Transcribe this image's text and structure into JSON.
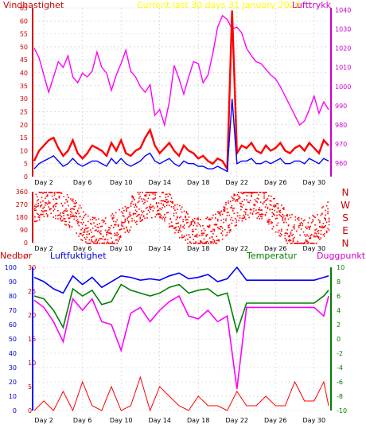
{
  "chart_data": [
    {
      "type": "line",
      "title": "Current last 30 days 31 January 2020",
      "left_label": "Vindhastighet",
      "right_label": "Lufttrykk",
      "y_left_ticks": [
        "0",
        "5",
        "10",
        "15",
        "20",
        "25",
        "30",
        "35",
        "40",
        "45",
        "50",
        "55",
        "60",
        "65"
      ],
      "y_right_ticks": [
        "960",
        "970",
        "980",
        "990",
        "1000",
        "1010",
        "1020",
        "1030",
        "1040"
      ],
      "x_ticks": [
        "Day 2",
        "Day 6",
        "Day 10",
        "Day 14",
        "Day 18",
        "Day 22",
        "Day 26",
        "Day 30"
      ],
      "ylim_left": [
        0,
        65
      ],
      "ylim_right": [
        953,
        1041
      ],
      "series": [
        {
          "color": "#ff00ff",
          "x": [
            1,
            1.5,
            2,
            2.5,
            3,
            3.5,
            4,
            4.5,
            5,
            5.5,
            6,
            6.5,
            7,
            7.5,
            8,
            8.5,
            9,
            9.5,
            10,
            10.5,
            11,
            11.5,
            12,
            12.5,
            13,
            13.5,
            14,
            14.5,
            15,
            15.5,
            16,
            16.5,
            17,
            17.5,
            18,
            18.5,
            19,
            19.5,
            20,
            20.5,
            21,
            21.5,
            22,
            22.5,
            23,
            23.5,
            24,
            24.5,
            25,
            25.5,
            26,
            26.5,
            27,
            27.5,
            28,
            28.5,
            29,
            29.5,
            30,
            30.5,
            31,
            31.5
          ],
          "y": [
            1020,
            1015,
            1006,
            997,
            1005,
            1013,
            1010,
            1016,
            1005,
            1002,
            1007,
            1005,
            1008,
            1018,
            1010,
            1007,
            998,
            1006,
            1012,
            1019,
            1008,
            1005,
            1000,
            997,
            1001,
            985,
            988,
            980,
            992,
            1011,
            1004,
            996,
            1005,
            1013,
            1012,
            1002,
            1006,
            1017,
            1031,
            1037,
            1035,
            1030,
            1031,
            1028,
            1020,
            1016,
            1013,
            1012,
            1009,
            1006,
            1004,
            1000,
            995,
            990,
            985,
            980,
            982,
            988,
            995,
            986,
            992,
            988
          ]
        },
        {
          "color": "#ff0000",
          "x": [
            1,
            1.5,
            2,
            2.5,
            3,
            3.5,
            4,
            4.5,
            5,
            5.5,
            6,
            6.5,
            7,
            7.5,
            8,
            8.5,
            9,
            9.5,
            10,
            10.5,
            11,
            11.5,
            12,
            12.5,
            13,
            13.5,
            14,
            14.5,
            15,
            15.5,
            16,
            16.5,
            17,
            17.5,
            18,
            18.5,
            19,
            19.5,
            20,
            20.5,
            21,
            21.5,
            22,
            22.5,
            23,
            23.5,
            24,
            24.5,
            25,
            25.5,
            26,
            26.5,
            27,
            27.5,
            28,
            28.5,
            29,
            29.5,
            30,
            30.5,
            31,
            31.5
          ],
          "y": [
            6,
            10,
            12,
            14,
            15,
            11,
            8,
            10,
            14,
            9,
            7,
            9,
            12,
            11,
            10,
            8,
            13,
            10,
            14,
            9,
            8,
            10,
            11,
            15,
            18,
            12,
            9,
            11,
            13,
            10,
            8,
            12,
            10,
            9,
            7,
            8,
            6,
            5,
            7,
            6,
            3,
            64,
            9,
            12,
            11,
            13,
            10,
            9,
            12,
            10,
            11,
            13,
            10,
            9,
            11,
            12,
            10,
            13,
            11,
            9,
            14,
            12
          ]
        },
        {
          "color": "#0000ff",
          "x": [
            1,
            1.5,
            2,
            2.5,
            3,
            3.5,
            4,
            4.5,
            5,
            5.5,
            6,
            6.5,
            7,
            7.5,
            8,
            8.5,
            9,
            9.5,
            10,
            10.5,
            11,
            11.5,
            12,
            12.5,
            13,
            13.5,
            14,
            14.5,
            15,
            15.5,
            16,
            16.5,
            17,
            17.5,
            18,
            18.5,
            19,
            19.5,
            20,
            20.5,
            21,
            21.5,
            22,
            22.5,
            23,
            23.5,
            24,
            24.5,
            25,
            25.5,
            26,
            26.5,
            27,
            27.5,
            28,
            28.5,
            29,
            29.5,
            30,
            30.5,
            31,
            31.5
          ],
          "y": [
            3,
            5,
            6,
            7,
            8,
            6,
            4,
            5,
            7,
            5,
            4,
            5,
            6,
            6,
            5,
            4,
            7,
            5,
            7,
            5,
            4,
            5,
            6,
            8,
            9,
            6,
            5,
            6,
            7,
            5,
            4,
            6,
            5,
            5,
            4,
            4,
            3,
            3,
            4,
            3,
            2,
            30,
            5,
            6,
            6,
            7,
            5,
            5,
            6,
            5,
            6,
            7,
            5,
            5,
            6,
            6,
            5,
            7,
            6,
            5,
            7,
            6
          ]
        }
      ]
    },
    {
      "type": "scatter",
      "right_labels": [
        "N",
        "W",
        "S",
        "E",
        "N"
      ],
      "y_ticks": [
        "0",
        "90",
        "180",
        "270",
        "360"
      ],
      "x_ticks": [
        "Day 2",
        "Day 6",
        "Day 10",
        "Day 14",
        "Day 18",
        "Day 22",
        "Day 26",
        "Day 30"
      ],
      "ylim": [
        0,
        360
      ]
    },
    {
      "type": "line",
      "labels": {
        "left1": "Nedbør",
        "left2": "Luftfuktighet",
        "right1": "Temperatur",
        "right2": "Duggpunkt"
      },
      "y_left1_ticks": [
        "0",
        "10",
        "20",
        "30",
        "40",
        "50",
        "60",
        "70",
        "80",
        "90",
        "100"
      ],
      "y_left2_ticks": [
        "0",
        "5",
        "10",
        "15",
        "20",
        "25",
        "30"
      ],
      "y_right_ticks": [
        "-10",
        "-8",
        "-6",
        "-4",
        "-2",
        "0",
        "2",
        "4",
        "6",
        "8",
        "10"
      ],
      "x_ticks": [
        "Day 2",
        "Day 6",
        "Day 10",
        "Day 14",
        "Day 18",
        "Day 22",
        "Day 26",
        "Day 30"
      ],
      "series": [
        {
          "color": "#0000ff",
          "x": [
            1,
            2,
            3,
            4,
            5,
            6,
            7,
            8,
            9,
            10,
            11,
            12,
            13,
            14,
            15,
            16,
            17,
            18,
            19,
            20,
            21,
            22,
            23,
            24,
            25,
            26,
            27,
            28,
            29,
            30,
            31,
            31.5
          ],
          "y": [
            93,
            90,
            85,
            82,
            94,
            88,
            93,
            86,
            90,
            94,
            93,
            91,
            92,
            91,
            94,
            96,
            92,
            93,
            95,
            90,
            92,
            100,
            91,
            91,
            91,
            91,
            91,
            91,
            91,
            91,
            93,
            94
          ]
        },
        {
          "color": "#008000",
          "x": [
            1,
            2,
            3,
            4,
            5,
            6,
            7,
            8,
            9,
            10,
            11,
            12,
            13,
            14,
            15,
            16,
            17,
            18,
            19,
            20,
            21,
            22,
            23,
            24,
            25,
            26,
            27,
            28,
            29,
            30,
            31,
            31.5
          ],
          "y": [
            80,
            78,
            70,
            58,
            85,
            80,
            84,
            74,
            76,
            88,
            84,
            82,
            80,
            82,
            86,
            88,
            82,
            84,
            85,
            80,
            82,
            55,
            75,
            75,
            75,
            75,
            75,
            75,
            75,
            75,
            80,
            84
          ]
        },
        {
          "color": "#ff00ff",
          "x": [
            1,
            2,
            3,
            4,
            5,
            6,
            7,
            8,
            9,
            10,
            11,
            12,
            13,
            14,
            15,
            16,
            17,
            18,
            19,
            20,
            21,
            22,
            23,
            24,
            25,
            26,
            27,
            28,
            29,
            30,
            31,
            31.5
          ],
          "y": [
            77,
            72,
            62,
            48,
            78,
            70,
            78,
            62,
            60,
            42,
            68,
            72,
            62,
            70,
            76,
            80,
            66,
            64,
            70,
            62,
            66,
            15,
            72,
            72,
            72,
            72,
            72,
            72,
            72,
            72,
            66,
            80
          ]
        },
        {
          "color": "#ff0000",
          "x": [
            1,
            2,
            3,
            4,
            5,
            6,
            7,
            8,
            9,
            10,
            11,
            12,
            13,
            14,
            15,
            16,
            17,
            18,
            19,
            20,
            21,
            22,
            23,
            24,
            25,
            26,
            27,
            28,
            29,
            30,
            31,
            31.5
          ],
          "y": [
            0,
            2,
            0,
            4,
            0,
            6,
            1,
            0,
            5,
            0,
            1,
            7,
            0,
            5,
            3,
            1,
            0,
            3,
            1,
            1,
            0,
            4,
            1,
            1,
            3,
            1,
            1,
            6,
            2,
            2,
            6,
            1
          ]
        }
      ]
    }
  ],
  "colors": {
    "wind": "#ff0000",
    "wind_avg": "#0000ff",
    "pressure": "#ff00ff",
    "title": "#ffff00",
    "humidity": "#0000ff",
    "temperature": "#008000",
    "dewpoint": "#ff00ff",
    "rain": "#ff0000"
  }
}
